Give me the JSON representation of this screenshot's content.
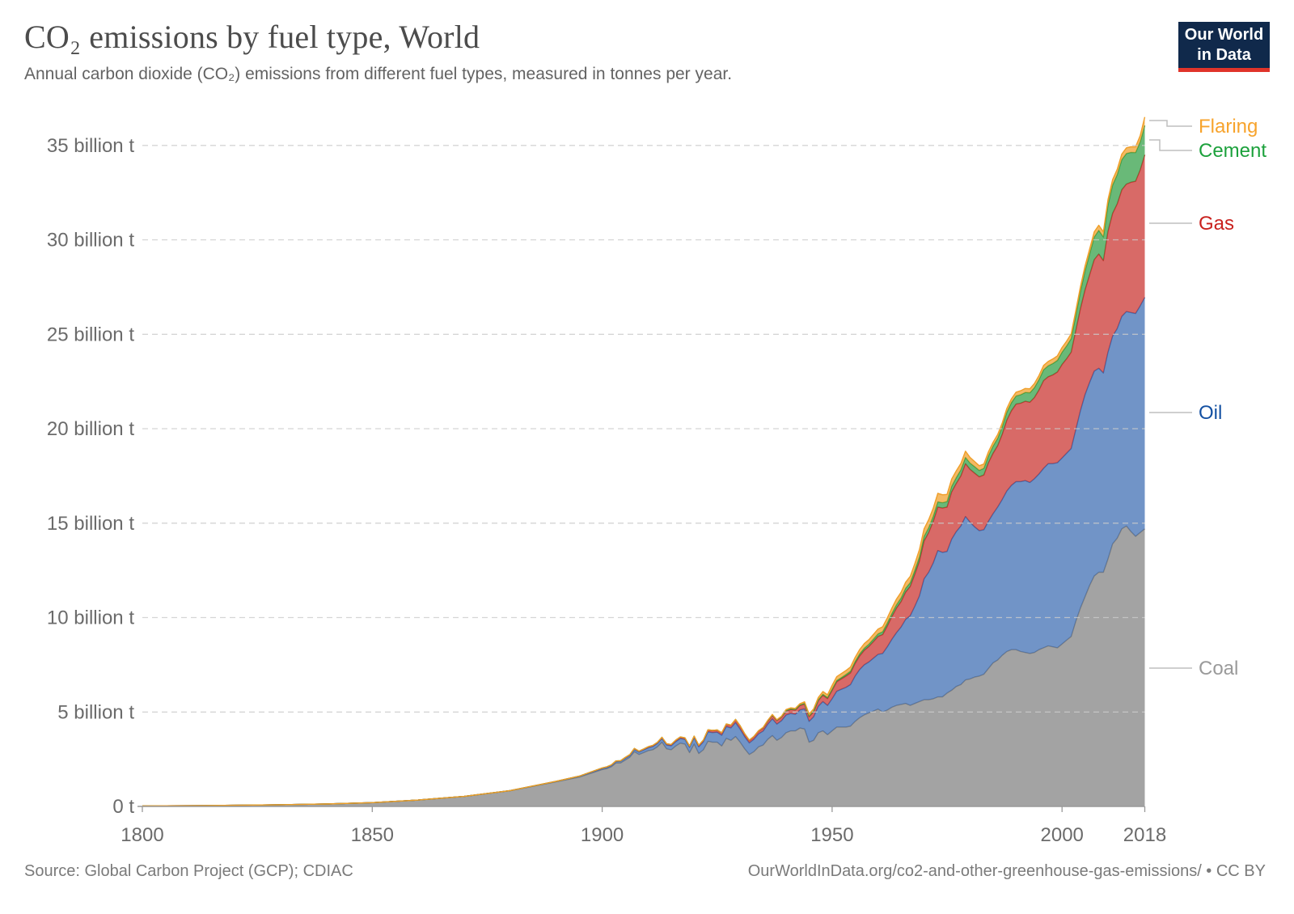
{
  "header": {
    "title": "CO₂ emissions by fuel type, World",
    "subtitle": "Annual carbon dioxide (CO₂) emissions from different fuel types, measured in tonnes per year."
  },
  "logo": {
    "line1": "Our World",
    "line2": "in Data",
    "bg_color": "#10294b",
    "stripe_color": "#e0342a"
  },
  "footer": {
    "source": "Source: Global Carbon Project (GCP); CDIAC",
    "license": "OurWorldInData.org/co2-and-other-greenhouse-gas-emissions/ • CC BY"
  },
  "chart_data": {
    "type": "area",
    "stacked": true,
    "title": "CO₂ emissions by fuel type, World",
    "xlabel": "",
    "ylabel": "",
    "unit": "billion tonnes CO₂ per year",
    "xlim": [
      1800,
      2018
    ],
    "ylim": [
      0,
      36.5
    ],
    "grid": "horizontal-dashed",
    "legend_position": "right-of-plot with connector lines",
    "x_ticks": [
      1800,
      1850,
      1900,
      1950,
      2000,
      2018
    ],
    "y_ticks": [
      {
        "value": 0,
        "label": "0 t"
      },
      {
        "value": 5,
        "label": "5 billion t"
      },
      {
        "value": 10,
        "label": "10 billion t"
      },
      {
        "value": 15,
        "label": "15 billion t"
      },
      {
        "value": 20,
        "label": "20 billion t"
      },
      {
        "value": 25,
        "label": "25 billion t"
      },
      {
        "value": 30,
        "label": "30 billion t"
      },
      {
        "value": 35,
        "label": "35 billion t"
      }
    ],
    "years": [
      1800,
      1810,
      1820,
      1830,
      1840,
      1850,
      1860,
      1870,
      1880,
      1890,
      1895,
      1900,
      1901,
      1902,
      1903,
      1904,
      1905,
      1906,
      1907,
      1908,
      1909,
      1910,
      1911,
      1912,
      1913,
      1914,
      1915,
      1916,
      1917,
      1918,
      1919,
      1920,
      1921,
      1922,
      1923,
      1924,
      1925,
      1926,
      1927,
      1928,
      1929,
      1930,
      1931,
      1932,
      1933,
      1934,
      1935,
      1936,
      1937,
      1938,
      1939,
      1940,
      1941,
      1942,
      1943,
      1944,
      1945,
      1946,
      1947,
      1948,
      1949,
      1950,
      1951,
      1952,
      1953,
      1954,
      1955,
      1956,
      1957,
      1958,
      1959,
      1960,
      1961,
      1962,
      1963,
      1964,
      1965,
      1966,
      1967,
      1968,
      1969,
      1970,
      1971,
      1972,
      1973,
      1974,
      1975,
      1976,
      1977,
      1978,
      1979,
      1980,
      1981,
      1982,
      1983,
      1984,
      1985,
      1986,
      1987,
      1988,
      1989,
      1990,
      1991,
      1992,
      1993,
      1994,
      1995,
      1996,
      1997,
      1998,
      1999,
      2000,
      2001,
      2002,
      2003,
      2004,
      2005,
      2006,
      2007,
      2008,
      2009,
      2010,
      2011,
      2012,
      2013,
      2014,
      2015,
      2016,
      2017,
      2018
    ],
    "series": [
      {
        "name": "Coal",
        "color": "#808080",
        "label_color": "#9a9a9a",
        "values": [
          0.03,
          0.04,
          0.06,
          0.09,
          0.13,
          0.2,
          0.34,
          0.53,
          0.83,
          1.3,
          1.55,
          1.95,
          2.0,
          2.1,
          2.3,
          2.3,
          2.45,
          2.6,
          2.9,
          2.75,
          2.85,
          2.95,
          3.0,
          3.15,
          3.4,
          3.05,
          3.0,
          3.2,
          3.35,
          3.3,
          2.85,
          3.3,
          2.8,
          3.0,
          3.45,
          3.4,
          3.4,
          3.2,
          3.6,
          3.5,
          3.7,
          3.4,
          3.05,
          2.75,
          2.9,
          3.15,
          3.25,
          3.55,
          3.75,
          3.5,
          3.65,
          3.9,
          4.0,
          4.0,
          4.15,
          4.1,
          3.4,
          3.5,
          3.9,
          4.0,
          3.8,
          4.0,
          4.2,
          4.2,
          4.2,
          4.25,
          4.5,
          4.7,
          4.85,
          4.95,
          5.05,
          5.15,
          5.0,
          5.1,
          5.25,
          5.35,
          5.4,
          5.45,
          5.35,
          5.45,
          5.55,
          5.65,
          5.65,
          5.7,
          5.8,
          5.8,
          6.0,
          6.15,
          6.35,
          6.45,
          6.7,
          6.75,
          6.85,
          6.9,
          7.0,
          7.3,
          7.6,
          7.75,
          8.0,
          8.2,
          8.3,
          8.3,
          8.2,
          8.15,
          8.1,
          8.15,
          8.3,
          8.4,
          8.5,
          8.45,
          8.4,
          8.6,
          8.8,
          9.0,
          9.8,
          10.5,
          11.1,
          11.7,
          12.2,
          12.4,
          12.4,
          13.1,
          13.9,
          14.2,
          14.7,
          14.85,
          14.55,
          14.3,
          14.5,
          14.7
        ]
      },
      {
        "name": "Oil",
        "color": "#3a6bb2",
        "label_color": "#1350a2",
        "values": [
          0,
          0,
          0,
          0,
          0,
          0,
          0,
          0,
          0.01,
          0.02,
          0.04,
          0.06,
          0.07,
          0.07,
          0.08,
          0.09,
          0.1,
          0.1,
          0.12,
          0.13,
          0.14,
          0.15,
          0.17,
          0.18,
          0.19,
          0.2,
          0.21,
          0.23,
          0.25,
          0.25,
          0.28,
          0.33,
          0.36,
          0.42,
          0.5,
          0.51,
          0.53,
          0.57,
          0.63,
          0.66,
          0.74,
          0.69,
          0.64,
          0.61,
          0.66,
          0.69,
          0.74,
          0.8,
          0.89,
          0.86,
          0.89,
          0.94,
          0.92,
          0.88,
          0.96,
          1.07,
          1.1,
          1.25,
          1.4,
          1.55,
          1.55,
          1.7,
          1.9,
          2.0,
          2.1,
          2.2,
          2.4,
          2.55,
          2.65,
          2.7,
          2.8,
          2.9,
          3.1,
          3.35,
          3.6,
          3.85,
          4.1,
          4.45,
          4.75,
          5.15,
          5.6,
          6.4,
          6.75,
          7.2,
          7.75,
          7.65,
          7.5,
          8.0,
          8.2,
          8.4,
          8.65,
          8.3,
          7.95,
          7.7,
          7.65,
          7.8,
          7.9,
          8.1,
          8.25,
          8.5,
          8.7,
          8.9,
          9.0,
          9.1,
          9.05,
          9.2,
          9.3,
          9.5,
          9.65,
          9.7,
          9.8,
          9.85,
          9.9,
          9.95,
          10.15,
          10.45,
          10.7,
          10.75,
          10.85,
          10.8,
          10.55,
          10.95,
          11.0,
          11.1,
          11.25,
          11.35,
          11.6,
          11.8,
          12.0,
          12.25
        ]
      },
      {
        "name": "Gas",
        "color": "#c9302c",
        "label_color": "#c9211e",
        "values": [
          0,
          0,
          0,
          0,
          0,
          0,
          0,
          0,
          0,
          0.01,
          0.01,
          0.02,
          0.02,
          0.02,
          0.02,
          0.02,
          0.03,
          0.03,
          0.04,
          0.04,
          0.04,
          0.05,
          0.05,
          0.05,
          0.06,
          0.06,
          0.06,
          0.07,
          0.07,
          0.07,
          0.06,
          0.07,
          0.06,
          0.07,
          0.09,
          0.1,
          0.1,
          0.11,
          0.12,
          0.13,
          0.15,
          0.15,
          0.13,
          0.12,
          0.12,
          0.14,
          0.15,
          0.16,
          0.18,
          0.18,
          0.19,
          0.2,
          0.21,
          0.22,
          0.23,
          0.25,
          0.25,
          0.27,
          0.3,
          0.34,
          0.36,
          0.45,
          0.5,
          0.55,
          0.6,
          0.62,
          0.67,
          0.72,
          0.77,
          0.82,
          0.88,
          0.95,
          1.0,
          1.1,
          1.2,
          1.3,
          1.35,
          1.45,
          1.55,
          1.7,
          1.85,
          2.0,
          2.1,
          2.2,
          2.3,
          2.35,
          2.35,
          2.5,
          2.55,
          2.65,
          2.8,
          2.8,
          2.85,
          2.85,
          2.9,
          3.1,
          3.2,
          3.25,
          3.45,
          3.75,
          3.95,
          4.1,
          4.15,
          4.2,
          4.25,
          4.3,
          4.45,
          4.65,
          4.6,
          4.7,
          4.8,
          4.95,
          5.0,
          5.1,
          5.25,
          5.4,
          5.55,
          5.7,
          5.9,
          6.05,
          5.95,
          6.4,
          6.5,
          6.6,
          6.7,
          6.75,
          6.9,
          7.0,
          7.2,
          7.55
        ]
      },
      {
        "name": "Cement",
        "color": "#2f9e44",
        "label_color": "#1ca13c",
        "values": [
          0,
          0,
          0,
          0,
          0,
          0,
          0,
          0,
          0,
          0,
          0,
          0.01,
          0.01,
          0.01,
          0.01,
          0.01,
          0.01,
          0.01,
          0.01,
          0.01,
          0.01,
          0.01,
          0.01,
          0.01,
          0.01,
          0.01,
          0.01,
          0.01,
          0.01,
          0.01,
          0.01,
          0.02,
          0.02,
          0.02,
          0.02,
          0.02,
          0.02,
          0.02,
          0.02,
          0.02,
          0.02,
          0.03,
          0.03,
          0.03,
          0.03,
          0.03,
          0.03,
          0.03,
          0.03,
          0.03,
          0.03,
          0.04,
          0.04,
          0.04,
          0.04,
          0.04,
          0.04,
          0.05,
          0.05,
          0.05,
          0.06,
          0.06,
          0.07,
          0.07,
          0.08,
          0.09,
          0.1,
          0.11,
          0.11,
          0.12,
          0.13,
          0.14,
          0.15,
          0.16,
          0.17,
          0.18,
          0.19,
          0.2,
          0.2,
          0.21,
          0.22,
          0.25,
          0.26,
          0.27,
          0.28,
          0.28,
          0.29,
          0.3,
          0.31,
          0.32,
          0.33,
          0.33,
          0.34,
          0.34,
          0.35,
          0.36,
          0.38,
          0.39,
          0.4,
          0.42,
          0.43,
          0.43,
          0.45,
          0.47,
          0.5,
          0.52,
          0.55,
          0.57,
          0.58,
          0.6,
          0.62,
          0.65,
          0.68,
          0.72,
          0.8,
          0.9,
          1.0,
          1.1,
          1.2,
          1.25,
          1.25,
          1.4,
          1.5,
          1.55,
          1.6,
          1.62,
          1.58,
          1.52,
          1.48,
          1.55
        ]
      },
      {
        "name": "Flaring",
        "color": "#f09e28",
        "label_color": "#f7a32c",
        "values": [
          0,
          0,
          0,
          0,
          0,
          0,
          0,
          0,
          0,
          0,
          0,
          0,
          0,
          0,
          0,
          0,
          0,
          0,
          0,
          0,
          0,
          0,
          0,
          0,
          0,
          0,
          0,
          0,
          0,
          0,
          0,
          0,
          0,
          0,
          0,
          0,
          0,
          0,
          0,
          0,
          0,
          0,
          0,
          0,
          0,
          0,
          0.02,
          0.02,
          0.02,
          0.02,
          0.02,
          0.05,
          0.05,
          0.05,
          0.06,
          0.08,
          0.1,
          0.1,
          0.12,
          0.14,
          0.14,
          0.2,
          0.2,
          0.21,
          0.21,
          0.22,
          0.22,
          0.23,
          0.24,
          0.24,
          0.25,
          0.25,
          0.26,
          0.27,
          0.28,
          0.3,
          0.3,
          0.32,
          0.33,
          0.35,
          0.38,
          0.4,
          0.42,
          0.43,
          0.45,
          0.42,
          0.38,
          0.38,
          0.36,
          0.34,
          0.33,
          0.3,
          0.27,
          0.25,
          0.23,
          0.22,
          0.2,
          0.2,
          0.2,
          0.2,
          0.2,
          0.2,
          0.21,
          0.21,
          0.21,
          0.22,
          0.22,
          0.23,
          0.23,
          0.24,
          0.24,
          0.25,
          0.25,
          0.25,
          0.25,
          0.26,
          0.26,
          0.26,
          0.27,
          0.27,
          0.27,
          0.28,
          0.28,
          0.28,
          0.29,
          0.3,
          0.3,
          0.3,
          0.33,
          0.45
        ]
      }
    ],
    "style": {
      "fill_opacity": 0.72,
      "gridline_color": "#cbcbcb",
      "axis_color": "#999999",
      "tick_label_color": "#6b6b6b",
      "connector_color": "#bfbfbf"
    }
  }
}
